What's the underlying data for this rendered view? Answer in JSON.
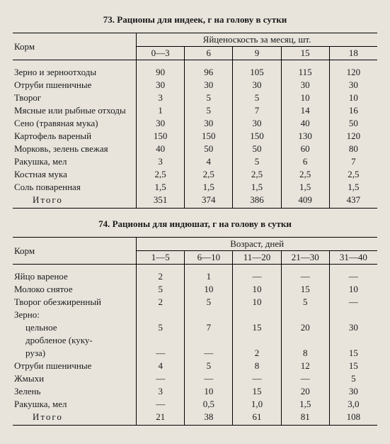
{
  "table1": {
    "title": "73. Рационы для индеек, г на голову в сутки",
    "feedHeader": "Корм",
    "groupHeader": "Яйценоскость за месяц, шт.",
    "columns": [
      "0—3",
      "6",
      "9",
      "15",
      "18"
    ],
    "rows": [
      {
        "feed": "Зерно и зерноотходы",
        "vals": [
          "90",
          "96",
          "105",
          "115",
          "120"
        ]
      },
      {
        "feed": "Отруби пшеничные",
        "vals": [
          "30",
          "30",
          "30",
          "30",
          "30"
        ]
      },
      {
        "feed": "Творог",
        "vals": [
          "3",
          "5",
          "5",
          "10",
          "10"
        ]
      },
      {
        "feed": "Мясные или рыбные отходы",
        "vals": [
          "1",
          "5",
          "7",
          "14",
          "16"
        ]
      },
      {
        "feed": "Сено (травяная мука)",
        "vals": [
          "30",
          "30",
          "30",
          "40",
          "50"
        ]
      },
      {
        "feed": "Картофель вареный",
        "vals": [
          "150",
          "150",
          "150",
          "130",
          "120"
        ]
      },
      {
        "feed": "Морковь, зелень свежая",
        "vals": [
          "40",
          "50",
          "50",
          "60",
          "80"
        ]
      },
      {
        "feed": "Ракушка, мел",
        "vals": [
          "3",
          "4",
          "5",
          "6",
          "7"
        ]
      },
      {
        "feed": "Костная мука",
        "vals": [
          "2,5",
          "2,5",
          "2,5",
          "2,5",
          "2,5"
        ]
      },
      {
        "feed": "Соль поваренная",
        "vals": [
          "1,5",
          "1,5",
          "1,5",
          "1,5",
          "1,5"
        ]
      },
      {
        "feed": "Итого",
        "itogo": true,
        "vals": [
          "351",
          "374",
          "386",
          "409",
          "437"
        ]
      }
    ]
  },
  "table2": {
    "title": "74. Рационы для индюшат, г на голову в сутки",
    "feedHeader": "Корм",
    "groupHeader": "Возраст, дней",
    "columns": [
      "1—5",
      "6—10",
      "11—20",
      "21—30",
      "31—40"
    ],
    "rows": [
      {
        "feed": "Яйцо вареное",
        "vals": [
          "2",
          "1",
          "—",
          "—",
          "—"
        ]
      },
      {
        "feed": "Молоко снятое",
        "vals": [
          "5",
          "10",
          "10",
          "15",
          "10"
        ]
      },
      {
        "feed": "Творог обезжиренный",
        "vals": [
          "2",
          "5",
          "10",
          "5",
          "—"
        ]
      },
      {
        "feed": "Зерно:",
        "vals": [
          "",
          "",
          "",
          "",
          ""
        ]
      },
      {
        "feed": "цельное",
        "indent": true,
        "vals": [
          "5",
          "7",
          "15",
          "20",
          "30"
        ]
      },
      {
        "feed": "дробленое (куку-",
        "indent": true,
        "vals": [
          "",
          "",
          "",
          "",
          ""
        ]
      },
      {
        "feed": "руза)",
        "indent": true,
        "vals": [
          "—",
          "—",
          "2",
          "8",
          "15"
        ]
      },
      {
        "feed": "Отруби пшеничные",
        "vals": [
          "4",
          "5",
          "8",
          "12",
          "15"
        ]
      },
      {
        "feed": "Жмыхи",
        "vals": [
          "—",
          "—",
          "—",
          "—",
          "5"
        ]
      },
      {
        "feed": "Зелень",
        "vals": [
          "3",
          "10",
          "15",
          "20",
          "30"
        ]
      },
      {
        "feed": "Ракушка, мел",
        "vals": [
          "—",
          "0,5",
          "1,0",
          "1,5",
          "3,0"
        ]
      },
      {
        "feed": "Итого",
        "itogo": true,
        "vals": [
          "21",
          "38",
          "61",
          "81",
          "108"
        ]
      }
    ]
  }
}
